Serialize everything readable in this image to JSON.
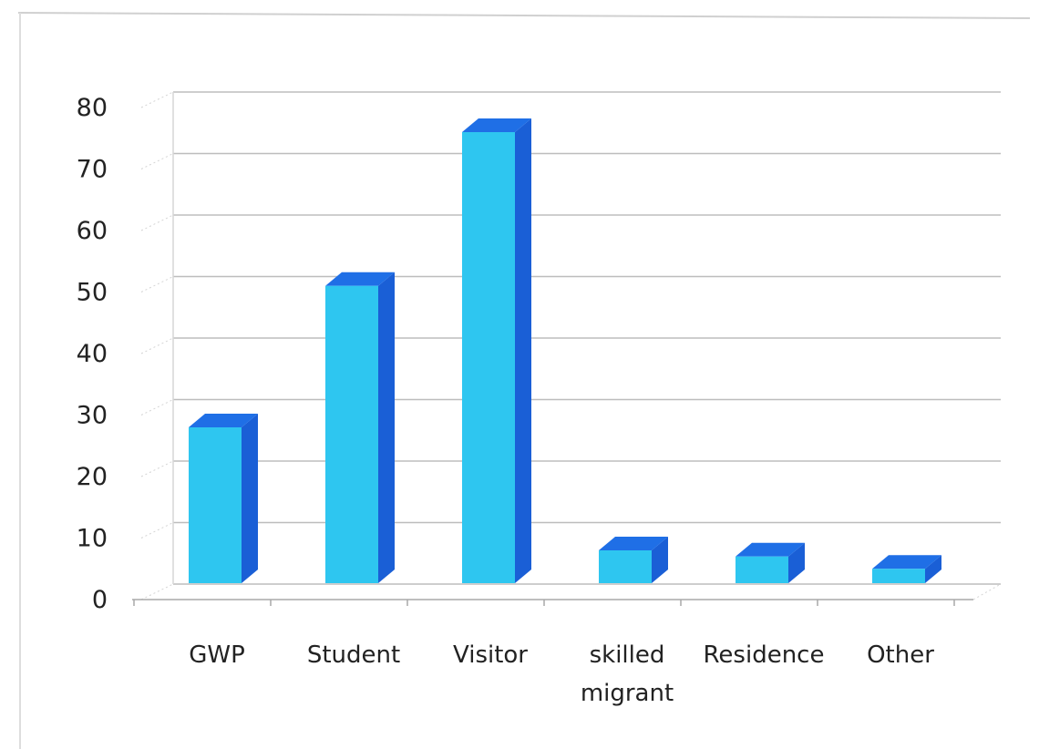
{
  "chart_data": {
    "type": "bar",
    "title": "",
    "xlabel": "",
    "ylabel": "",
    "categories": [
      "GWP",
      "Student",
      "Visitor",
      "skilled migrant",
      "Residence",
      "Other"
    ],
    "category_lines": [
      [
        "GWP"
      ],
      [
        "Student"
      ],
      [
        "Visitor"
      ],
      [
        "skilled",
        "migrant"
      ],
      [
        "Residence"
      ],
      [
        "Other"
      ]
    ],
    "values": [
      28,
      51,
      76,
      8,
      7,
      5
    ],
    "ylim": [
      0,
      80
    ],
    "yticks": [
      0,
      10,
      20,
      30,
      40,
      50,
      60,
      70,
      80
    ],
    "grid": true,
    "legend": "none",
    "style": "3d-column"
  },
  "colors": {
    "bar_front": "#2ec6f0",
    "bar_side": "#1a5fd6",
    "bar_top": "#1f6fe6",
    "grid": "#bdbdbd",
    "text": "#222222"
  }
}
